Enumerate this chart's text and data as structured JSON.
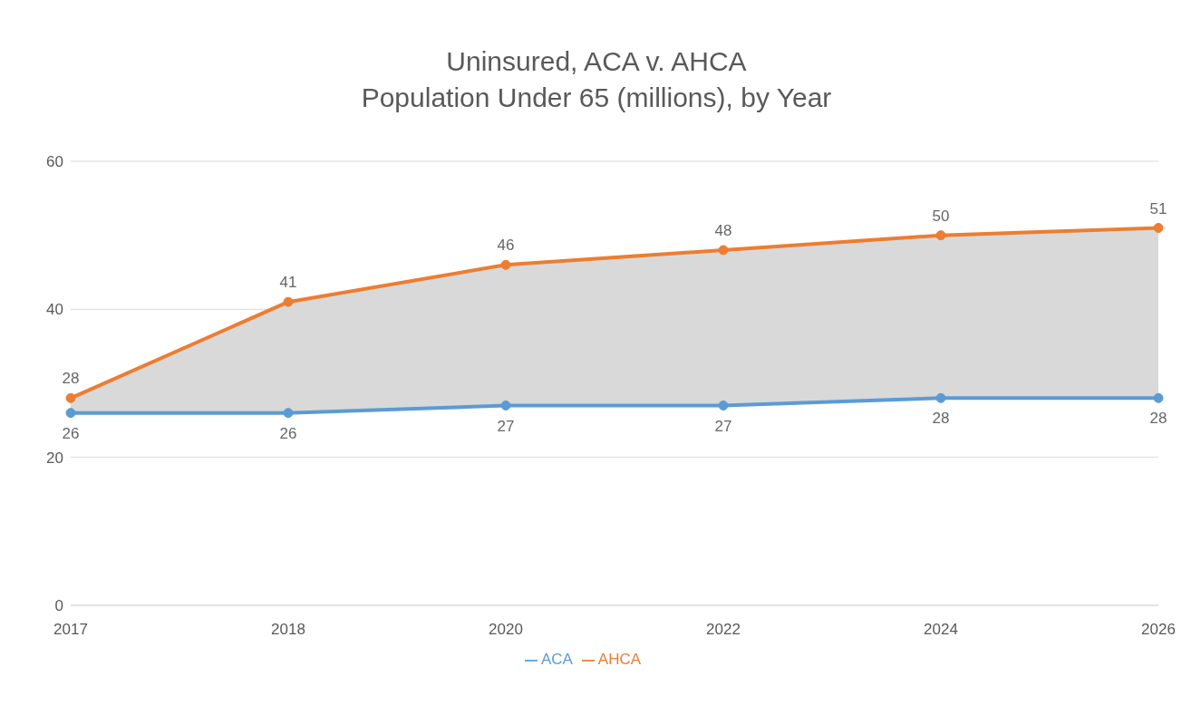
{
  "chart_data": {
    "type": "line",
    "title": "Uninsured, ACA v. AHCA",
    "subtitle": "Population Under 65 (millions), by Year",
    "categories": [
      "2017",
      "2018",
      "2020",
      "2022",
      "2024",
      "2026"
    ],
    "series": [
      {
        "name": "ACA",
        "color": "#5b9bd5",
        "values": [
          26,
          26,
          27,
          27,
          28,
          28
        ]
      },
      {
        "name": "AHCA",
        "color": "#ed7d31",
        "values": [
          28,
          41,
          46,
          48,
          50,
          51
        ],
        "lower": [
          26,
          26,
          27,
          27,
          28,
          28
        ],
        "upper": [
          28,
          41,
          46,
          48,
          50,
          51
        ]
      }
    ],
    "ylim": [
      0,
      60
    ],
    "yticks": [
      0,
      20,
      40,
      60
    ],
    "grid": "y",
    "legend": "bottom",
    "marker": "circle",
    "line_style": "solid",
    "data_labels": true
  }
}
